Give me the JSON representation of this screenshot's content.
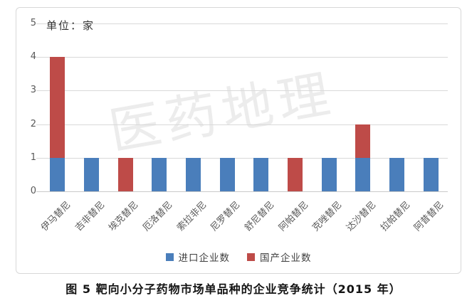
{
  "chart_data": {
    "type": "bar",
    "stacked": true,
    "unit_label": "单位：家",
    "categories": [
      "伊马替尼",
      "吉非替尼",
      "埃克替尼",
      "厄洛替尼",
      "索拉非尼",
      "尼罗替尼",
      "舒尼替尼",
      "阿帕替尼",
      "克唑替尼",
      "达沙替尼",
      "拉帕替尼",
      "阿昔替尼"
    ],
    "series": [
      {
        "name": "进口企业数",
        "color": "#4A7EBB",
        "values": [
          1,
          1,
          0,
          1,
          1,
          1,
          1,
          0,
          1,
          1,
          1,
          1
        ]
      },
      {
        "name": "国产企业数",
        "color": "#BE4B48",
        "values": [
          3,
          0,
          1,
          0,
          0,
          0,
          0,
          1,
          0,
          1,
          0,
          0
        ]
      }
    ],
    "y_ticks": [
      0,
      1,
      2,
      3,
      4,
      5
    ],
    "ylim": [
      0,
      5
    ],
    "grid": true,
    "legend_position": "bottom"
  },
  "watermark": "医药地理",
  "caption": "图 5  靶向小分子药物市场单品种的企业竞争统计（2015 年）",
  "colors": {
    "import_series": "#4A7EBB",
    "domestic_series": "#BE4B48",
    "gridline": "#d9d9d9",
    "axis_text": "#595959",
    "frame_border": "#d8d8d8"
  }
}
